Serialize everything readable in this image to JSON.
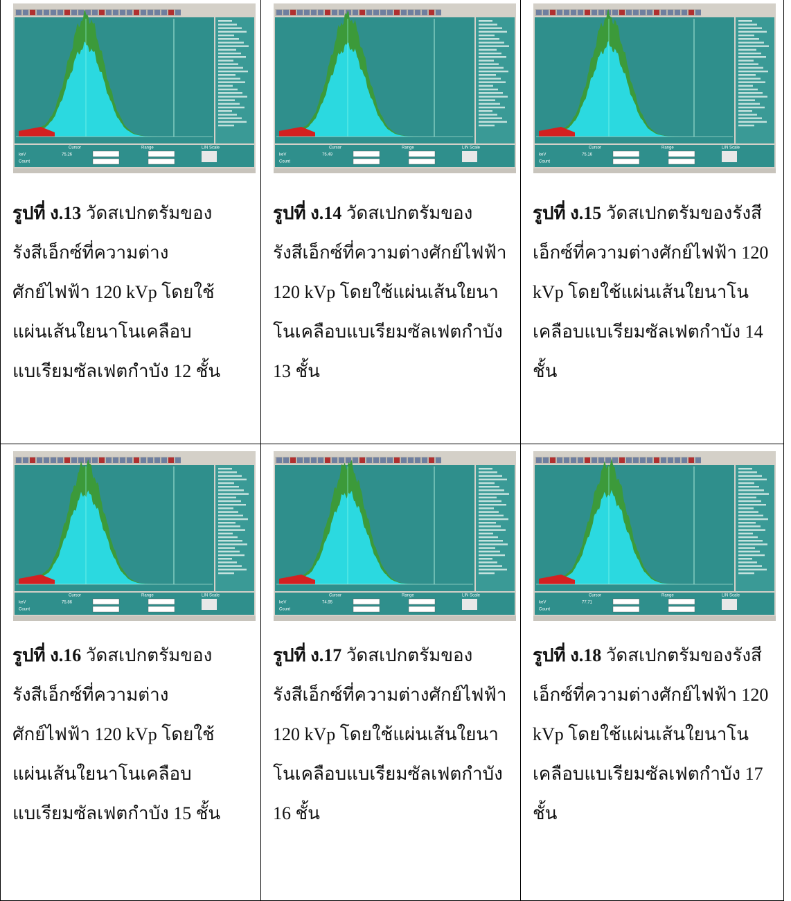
{
  "spectrum_ui": {
    "cursor": "Cursor",
    "range": "Range",
    "scale": "LIN Scale",
    "kev": "keV",
    "count": "Count"
  },
  "figures": [
    {
      "cursor_kev": "75.26",
      "caption": {
        "label": "รูปที่ ง.13",
        "lines": [
          "วัดสเปกตรัมของ",
          "รังสีเอ็กซ์ที่ความต่าง",
          "ศักย์ไฟฟ้า 120 kVp โดยใช้",
          "แผ่นเส้นใยนาโนเคลือบ",
          "แบเรียมซัลเฟตกำบัง 12 ชั้น"
        ]
      }
    },
    {
      "cursor_kev": "75.49",
      "caption": {
        "label": "รูปที่ ง.14",
        "lines": [
          "วัดสเปกตรัมของ",
          "รังสีเอ็กซ์ที่ความต่างศักย์ไฟฟ้า",
          "120 kVp โดยใช้แผ่นเส้นใยนา",
          "โนเคลือบแบเรียมซัลเฟตกำบัง",
          "13 ชั้น"
        ]
      }
    },
    {
      "cursor_kev": "75.16",
      "caption": {
        "label": "รูปที่ ง.15",
        "lines": [
          "วัดสเปกตรัมของรังสี",
          "เอ็กซ์ที่ความต่างศักย์ไฟฟ้า 120",
          "kVp โดยใช้แผ่นเส้นใยนาโน",
          "เคลือบแบเรียมซัลเฟตกำบัง 14",
          "ชั้น"
        ]
      }
    },
    {
      "cursor_kev": "75.86",
      "caption": {
        "label": "รูปที่ ง.16",
        "lines": [
          "วัดสเปกตรัมของ",
          "รังสีเอ็กซ์ที่ความต่าง",
          "ศักย์ไฟฟ้า 120 kVp โดยใช้",
          "แผ่นเส้นใยนาโนเคลือบ",
          "แบเรียมซัลเฟตกำบัง 15 ชั้น"
        ]
      }
    },
    {
      "cursor_kev": "74.95",
      "caption": {
        "label": "รูปที่ ง.17",
        "lines": [
          "วัดสเปกตรัมของ",
          "รังสีเอ็กซ์ที่ความต่างศักย์ไฟฟ้า",
          "120 kVp โดยใช้แผ่นเส้นใยนา",
          "โนเคลือบแบเรียมซัลเฟตกำบัง",
          "16 ชั้น"
        ]
      }
    },
    {
      "cursor_kev": "77.71",
      "caption": {
        "label": "รูปที่ ง.18",
        "lines": [
          "วัดสเปกตรัมของรังสี",
          "เอ็กซ์ที่ความต่างศักย์ไฟฟ้า 120",
          "kVp โดยใช้แผ่นเส้นใยนาโน",
          "เคลือบแบเรียมซัลเฟตกำบัง 17",
          "ชั้น"
        ]
      }
    }
  ]
}
